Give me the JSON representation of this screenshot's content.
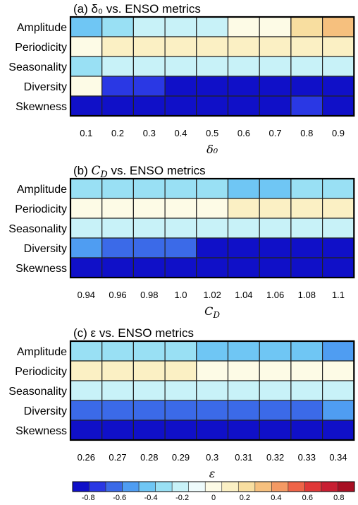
{
  "palette": [
    "#1010c8",
    "#2a38e4",
    "#3b6ae8",
    "#4f9df2",
    "#6fc6f4",
    "#99e0f4",
    "#c8f2f8",
    "#eefbfc",
    "#fdfbe6",
    "#fbf0c4",
    "#f8dea0",
    "#f6c07e",
    "#f49a64",
    "#ee6448",
    "#e03838",
    "#c81e32",
    "#a80f23"
  ],
  "chart_data": [
    {
      "type": "heatmap",
      "title": "(a) δ₀ vs. ENSO metrics",
      "xlabel": "δ₀",
      "categories": [
        "0.1",
        "0.2",
        "0.3",
        "0.4",
        "0.5",
        "0.6",
        "0.7",
        "0.8",
        "0.9"
      ],
      "rows": [
        "Amplitude",
        "Periodicity",
        "Seasonality",
        "Diversity",
        "Skewness"
      ],
      "values": [
        [
          -0.45,
          -0.3,
          -0.25,
          -0.25,
          -0.2,
          -0.05,
          0.05,
          0.2,
          0.3
        ],
        [
          0.05,
          0.1,
          0.15,
          0.15,
          0.15,
          0.15,
          0.1,
          0.1,
          0.1
        ],
        [
          -0.3,
          -0.25,
          -0.2,
          -0.2,
          -0.2,
          -0.2,
          -0.2,
          -0.2,
          -0.2
        ],
        [
          -0.05,
          -0.7,
          -0.7,
          -0.8,
          -0.85,
          -0.85,
          -0.85,
          -0.85,
          -0.85
        ],
        [
          -0.85,
          -0.85,
          -0.85,
          -0.85,
          -0.85,
          -0.85,
          -0.85,
          -0.75,
          -0.85
        ]
      ]
    },
    {
      "type": "heatmap",
      "title": "(b) C_D vs. ENSO metrics",
      "xlabel": "C_D",
      "categories": [
        "0.94",
        "0.96",
        "0.98",
        "1.0",
        "1.02",
        "1.04",
        "1.06",
        "1.08",
        "1.1"
      ],
      "rows": [
        "Amplitude",
        "Periodicity",
        "Seasonality",
        "Diversity",
        "Skewness"
      ],
      "values": [
        [
          -0.35,
          -0.35,
          -0.35,
          -0.35,
          -0.35,
          -0.4,
          -0.4,
          -0.35,
          -0.3
        ],
        [
          0.05,
          0.05,
          0.05,
          0.05,
          0.05,
          0.15,
          0.15,
          0.15,
          0.15
        ],
        [
          -0.2,
          -0.2,
          -0.2,
          -0.2,
          -0.2,
          -0.2,
          -0.2,
          -0.2,
          -0.2
        ],
        [
          -0.55,
          -0.65,
          -0.65,
          -0.65,
          -0.8,
          -0.85,
          -0.85,
          -0.85,
          -0.85
        ],
        [
          -0.85,
          -0.85,
          -0.85,
          -0.85,
          -0.85,
          -0.85,
          -0.85,
          -0.85,
          -0.85
        ]
      ]
    },
    {
      "type": "heatmap",
      "title": "(c) ε vs. ENSO metrics",
      "xlabel": "ε",
      "categories": [
        "0.26",
        "0.27",
        "0.28",
        "0.29",
        "0.3",
        "0.31",
        "0.32",
        "0.33",
        "0.34"
      ],
      "rows": [
        "Amplitude",
        "Periodicity",
        "Seasonality",
        "Diversity",
        "Skewness"
      ],
      "values": [
        [
          -0.3,
          -0.35,
          -0.35,
          -0.35,
          -0.4,
          -0.45,
          -0.45,
          -0.45,
          -0.5
        ],
        [
          0.15,
          0.15,
          0.15,
          0.15,
          0.05,
          0.05,
          0.05,
          0.05,
          0.05
        ],
        [
          -0.25,
          -0.25,
          -0.25,
          -0.25,
          -0.2,
          -0.2,
          -0.2,
          -0.2,
          -0.2
        ],
        [
          -0.65,
          -0.65,
          -0.65,
          -0.65,
          -0.65,
          -0.65,
          -0.65,
          -0.65,
          -0.55
        ],
        [
          -0.85,
          -0.85,
          -0.85,
          -0.85,
          -0.85,
          -0.85,
          -0.85,
          -0.85,
          -0.85
        ]
      ]
    }
  ],
  "colorbar": {
    "range": [
      -0.9,
      0.9
    ],
    "ticks": [
      "-0.8",
      "-0.6",
      "-0.4",
      "-0.2",
      "0",
      "0.2",
      "0.4",
      "0.6",
      "0.8"
    ]
  }
}
